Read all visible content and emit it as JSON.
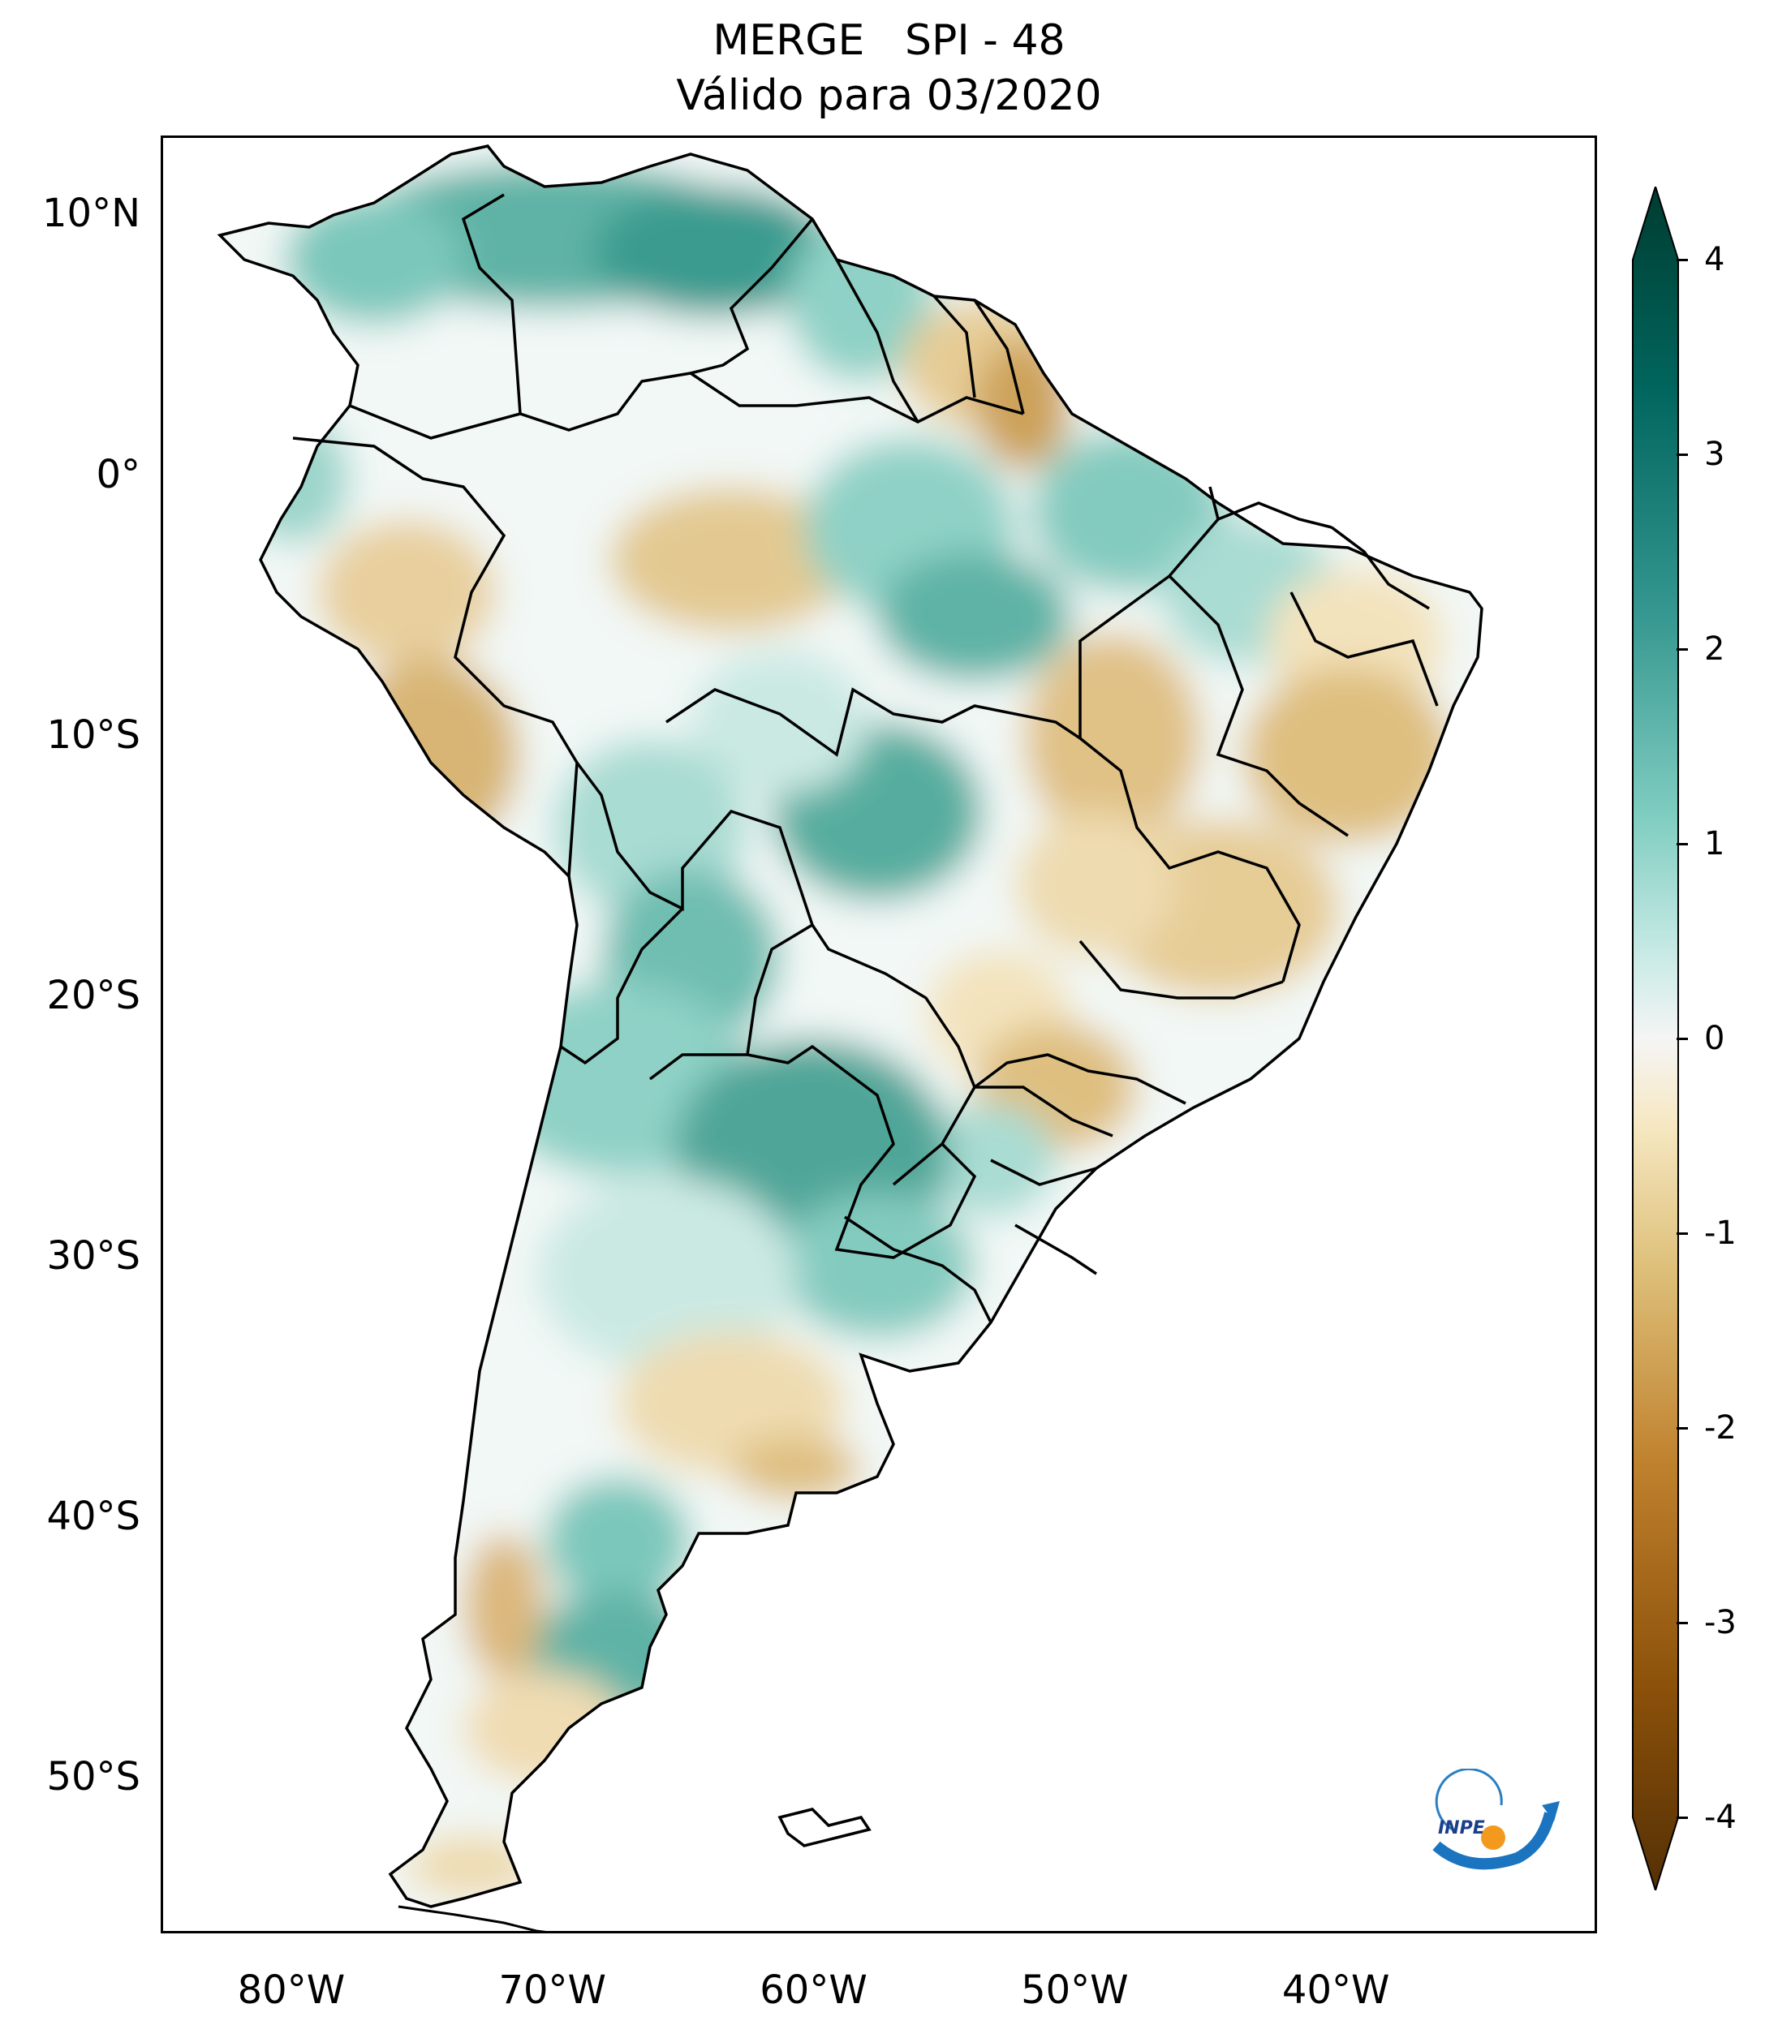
{
  "title": {
    "line1": "MERGE   SPI - 48",
    "line2": "Válido para 03/2020"
  },
  "axes": {
    "lat_labels": [
      "10°N",
      "0°",
      "10°S",
      "20°S",
      "30°S",
      "40°S",
      "50°S"
    ],
    "lat_values": [
      10,
      0,
      -10,
      -20,
      -30,
      -40,
      -50
    ],
    "lon_labels": [
      "80°W",
      "70°W",
      "60°W",
      "50°W",
      "40°W"
    ],
    "lon_values": [
      -80,
      -70,
      -60,
      -50,
      -40
    ],
    "lon_range": [
      -85,
      -30
    ],
    "lat_range": [
      -56,
      13
    ]
  },
  "colorbar": {
    "ticks": [
      "4",
      "3",
      "2",
      "1",
      "0",
      "-1",
      "-2",
      "-3",
      "-4"
    ],
    "range": [
      -4,
      4
    ],
    "extend": "both",
    "colormap": "BrBG",
    "colors": {
      "max": "#003c30",
      "high": "#01665e",
      "mid_high": "#35978f",
      "low_pos": "#80cdc1",
      "light_pos": "#c7eae5",
      "zero": "#f5f5f5",
      "light_neg": "#f6e8c3",
      "low_neg": "#dfc27d",
      "mid_neg": "#bf812d",
      "neg_high": "#8c510a",
      "min": "#543005"
    }
  },
  "logo": {
    "text": "INPE"
  }
}
